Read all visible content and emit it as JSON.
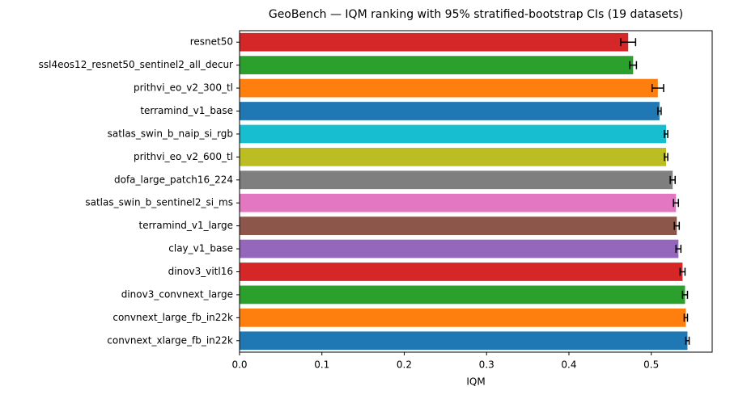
{
  "chart_data": {
    "type": "barh",
    "title": "GeoBench — IQM ranking with 95% stratified-bootstrap CIs (19 datasets)",
    "x_label": "IQM",
    "categories": [
      "resnet50",
      "ssl4eos12_resnet50_sentinel2_all_decur",
      "prithvi_eo_v2_300_tl",
      "terramind_v1_base",
      "satlas_swin_b_naip_si_rgb",
      "prithvi_eo_v2_600_tl",
      "dofa_large_patch16_224",
      "satlas_swin_b_sentinel2_si_ms",
      "terramind_v1_large",
      "clay_v1_base",
      "dinov3_vitl16",
      "dinov3_convnext_large",
      "convnext_large_fb_in22k",
      "convnext_xlarge_fb_in22k"
    ],
    "values": [
      0.472,
      0.478,
      0.508,
      0.51,
      0.518,
      0.518,
      0.526,
      0.53,
      0.531,
      0.533,
      0.538,
      0.541,
      0.542,
      0.544
    ],
    "errors": [
      0.009,
      0.004,
      0.007,
      0.002,
      0.002,
      0.002,
      0.003,
      0.003,
      0.003,
      0.003,
      0.003,
      0.003,
      0.002,
      0.002
    ],
    "colors": [
      "#d62728",
      "#2ca02c",
      "#ff7f0e",
      "#1f77b4",
      "#17becf",
      "#bcbd22",
      "#7f7f7f",
      "#e377c2",
      "#8c564b",
      "#9467bd",
      "#d62728",
      "#2ca02c",
      "#ff7f0e",
      "#1f77b4"
    ],
    "xlim": [
      0,
      0.574
    ],
    "xticks": [
      {
        "value": 0,
        "label": "0.0"
      },
      0.1,
      0.2,
      0.3,
      0.4,
      0.5
    ]
  }
}
